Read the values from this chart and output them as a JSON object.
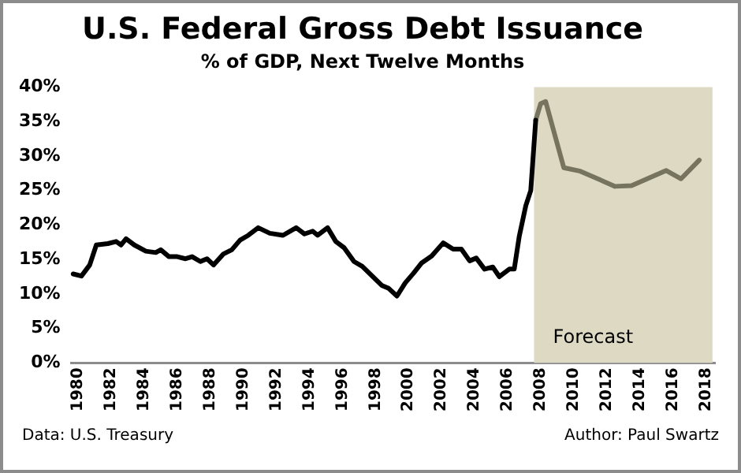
{
  "chart_data": {
    "type": "line",
    "title": "U.S. Federal Gross Debt Issuance",
    "subtitle": "% of GDP, Next Twelve Months",
    "annotations": [
      "Data: U.S. Treasury",
      "Author: Paul Swartz"
    ],
    "series": [
      {
        "color": "#000000",
        "x": [
          1979.7,
          1980.2,
          1980.7,
          1981.1,
          1981.8,
          1982.3,
          1982.6,
          1982.9,
          1983.4,
          1984.1,
          1984.7,
          1985.0,
          1985.5,
          1986.0,
          1986.5,
          1986.9,
          1987.4,
          1987.8,
          1988.2,
          1988.8,
          1989.3,
          1989.8,
          1990.3,
          1990.9,
          1991.6,
          1992.4,
          1993.2,
          1993.7,
          1994.2,
          1994.5,
          1995.1,
          1995.6,
          1996.1,
          1996.7,
          1997.2,
          1997.8,
          1998.4,
          1998.8,
          1999.3,
          1999.8,
          2000.3,
          2000.8,
          2001.4,
          2002.1,
          2002.7,
          2003.2,
          2003.7,
          2004.1,
          2004.6,
          2005.1,
          2005.5,
          2006.1,
          2006.4,
          2006.7,
          2007.1,
          2007.4,
          2007.7
        ],
        "values": [
          12.9,
          12.6,
          14.2,
          17.1,
          17.3,
          17.6,
          17.1,
          18.0,
          17.1,
          16.2,
          16.0,
          16.4,
          15.4,
          15.4,
          15.1,
          15.4,
          14.7,
          15.1,
          14.2,
          15.8,
          16.4,
          17.8,
          18.5,
          19.6,
          18.8,
          18.5,
          19.6,
          18.7,
          19.1,
          18.5,
          19.6,
          17.6,
          16.7,
          14.7,
          14.0,
          12.6,
          11.2,
          10.8,
          9.7,
          11.6,
          13.0,
          14.5,
          15.5,
          17.4,
          16.5,
          16.5,
          14.8,
          15.2,
          13.6,
          13.9,
          12.5,
          13.6,
          13.6,
          18.3,
          22.8,
          25.0,
          35.2
        ]
      },
      {
        "color": "#76745e",
        "x": [
          2007.7,
          2008.0,
          2008.3,
          2009.4,
          2010.4,
          2012.5,
          2013.5,
          2015.6,
          2016.5,
          2017.6
        ],
        "values": [
          35.2,
          37.6,
          37.9,
          28.3,
          27.8,
          25.6,
          25.7,
          27.9,
          26.7,
          29.4
        ]
      }
    ],
    "xlim": [
      1979.5,
      2018.6
    ],
    "xticks": [
      1980,
      1982,
      1984,
      1986,
      1988,
      1990,
      1992,
      1994,
      1996,
      1998,
      2000,
      2002,
      2004,
      2006,
      2008,
      2010,
      2012,
      2014,
      2016,
      2018
    ],
    "ylim": [
      0,
      40
    ],
    "yticks": [
      {
        "value": 0,
        "label": "0%"
      },
      {
        "value": 5,
        "label": "5%"
      },
      {
        "value": 10,
        "label": "10%"
      },
      {
        "value": 15,
        "label": "15%"
      },
      {
        "value": 20,
        "label": "20%"
      },
      {
        "value": 25,
        "label": "25%"
      },
      {
        "value": 30,
        "label": "30%"
      },
      {
        "value": 35,
        "label": "35%"
      },
      {
        "value": 40,
        "label": "40%"
      }
    ],
    "bands": [
      {
        "axis": "x",
        "from": 2007.6,
        "to": 2018.4,
        "label": "Forecast",
        "color": "#ddd9c3"
      }
    ],
    "grid": false,
    "legend": false,
    "marker": "none",
    "line_style": "solid"
  }
}
